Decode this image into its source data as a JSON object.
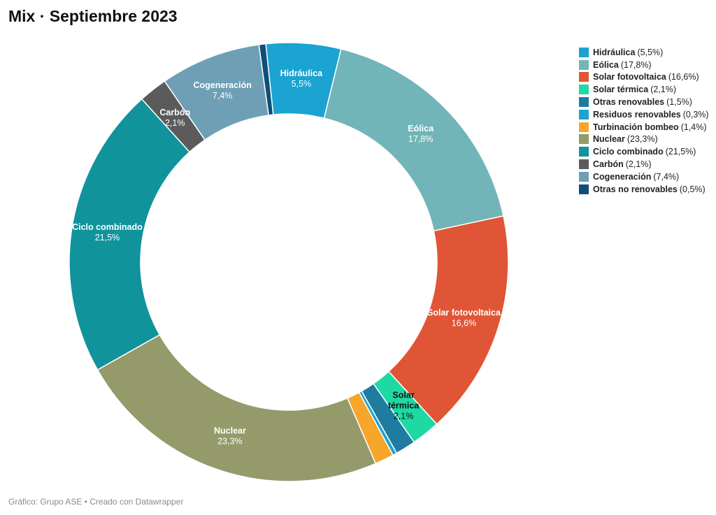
{
  "title": "Mix · Septiembre 2023",
  "footer": "Gráfico: Grupo ASE • Creado con Datawrapper",
  "chart_data": {
    "type": "pie",
    "title": "Mix · Septiembre 2023",
    "donut": true,
    "legend_placement": "top-right",
    "slices": [
      {
        "name": "Hidráulica",
        "value": 5.5,
        "value_label": "5,5%",
        "color": "#1ba3d1",
        "label_color": "#ffffff",
        "show_label": true
      },
      {
        "name": "Eólica",
        "value": 17.8,
        "value_label": "17,8%",
        "color": "#72b5b8",
        "label_color": "#ffffff",
        "show_label": true
      },
      {
        "name": "Solar fotovoltaica",
        "value": 16.6,
        "value_label": "16,6%",
        "color": "#e05535",
        "label_color": "#ffffff",
        "show_label": true
      },
      {
        "name": "Solar térmica",
        "value": 2.1,
        "value_label": "2,1%",
        "color": "#1fd9a4",
        "label_color": "#111111",
        "show_label": true
      },
      {
        "name": "Otras renovables",
        "value": 1.5,
        "value_label": "1,5%",
        "color": "#1f7ca1",
        "label_color": "#ffffff",
        "show_label": false
      },
      {
        "name": "Residuos renovables",
        "value": 0.3,
        "value_label": "0,3%",
        "color": "#1ba3d1",
        "label_color": "#ffffff",
        "show_label": false
      },
      {
        "name": "Turbinación bombeo",
        "value": 1.4,
        "value_label": "1,4%",
        "color": "#f7a62b",
        "label_color": "#ffffff",
        "show_label": false
      },
      {
        "name": "Nuclear",
        "value": 23.3,
        "value_label": "23,3%",
        "color": "#949a6a",
        "label_color": "#ffffff",
        "show_label": true
      },
      {
        "name": "Ciclo combinado",
        "value": 21.5,
        "value_label": "21,5%",
        "color": "#11939c",
        "label_color": "#ffffff",
        "show_label": true
      },
      {
        "name": "Carbón",
        "value": 2.1,
        "value_label": "2,1%",
        "color": "#5b5b5b",
        "label_color": "#ffffff",
        "show_label": true
      },
      {
        "name": "Cogeneración",
        "value": 7.4,
        "value_label": "7,4%",
        "color": "#6e9fb5",
        "label_color": "#ffffff",
        "show_label": true
      },
      {
        "name": "Otras no renovables",
        "value": 0.5,
        "value_label": "0,5%",
        "color": "#0d4f7a",
        "label_color": "#ffffff",
        "show_label": false
      }
    ]
  },
  "legend": [
    {
      "name": "Hidráulica",
      "value": "(5,5%)",
      "color": "#1ba3d1"
    },
    {
      "name": "Eólica",
      "value": "(17,8%)",
      "color": "#72b5b8"
    },
    {
      "name": "Solar fotovoltaica",
      "value": "(16,6%)",
      "color": "#e05535"
    },
    {
      "name": "Solar térmica",
      "value": "(2,1%)",
      "color": "#1fd9a4"
    },
    {
      "name": "Otras renovables",
      "value": "(1,5%)",
      "color": "#1f7ca1"
    },
    {
      "name": "Residuos renovables",
      "value": "(0,3%)",
      "color": "#1ba3d1"
    },
    {
      "name": "Turbinación bombeo",
      "value": "(1,4%)",
      "color": "#f7a62b"
    },
    {
      "name": "Nuclear",
      "value": "(23,3%)",
      "color": "#949a6a"
    },
    {
      "name": "Ciclo combinado",
      "value": "(21,5%)",
      "color": "#11939c"
    },
    {
      "name": "Carbón",
      "value": "(2,1%)",
      "color": "#5b5b5b"
    },
    {
      "name": "Cogeneración",
      "value": "(7,4%)",
      "color": "#6e9fb5"
    },
    {
      "name": "Otras no renovables",
      "value": "(0,5%)",
      "color": "#0d4f7a"
    }
  ]
}
